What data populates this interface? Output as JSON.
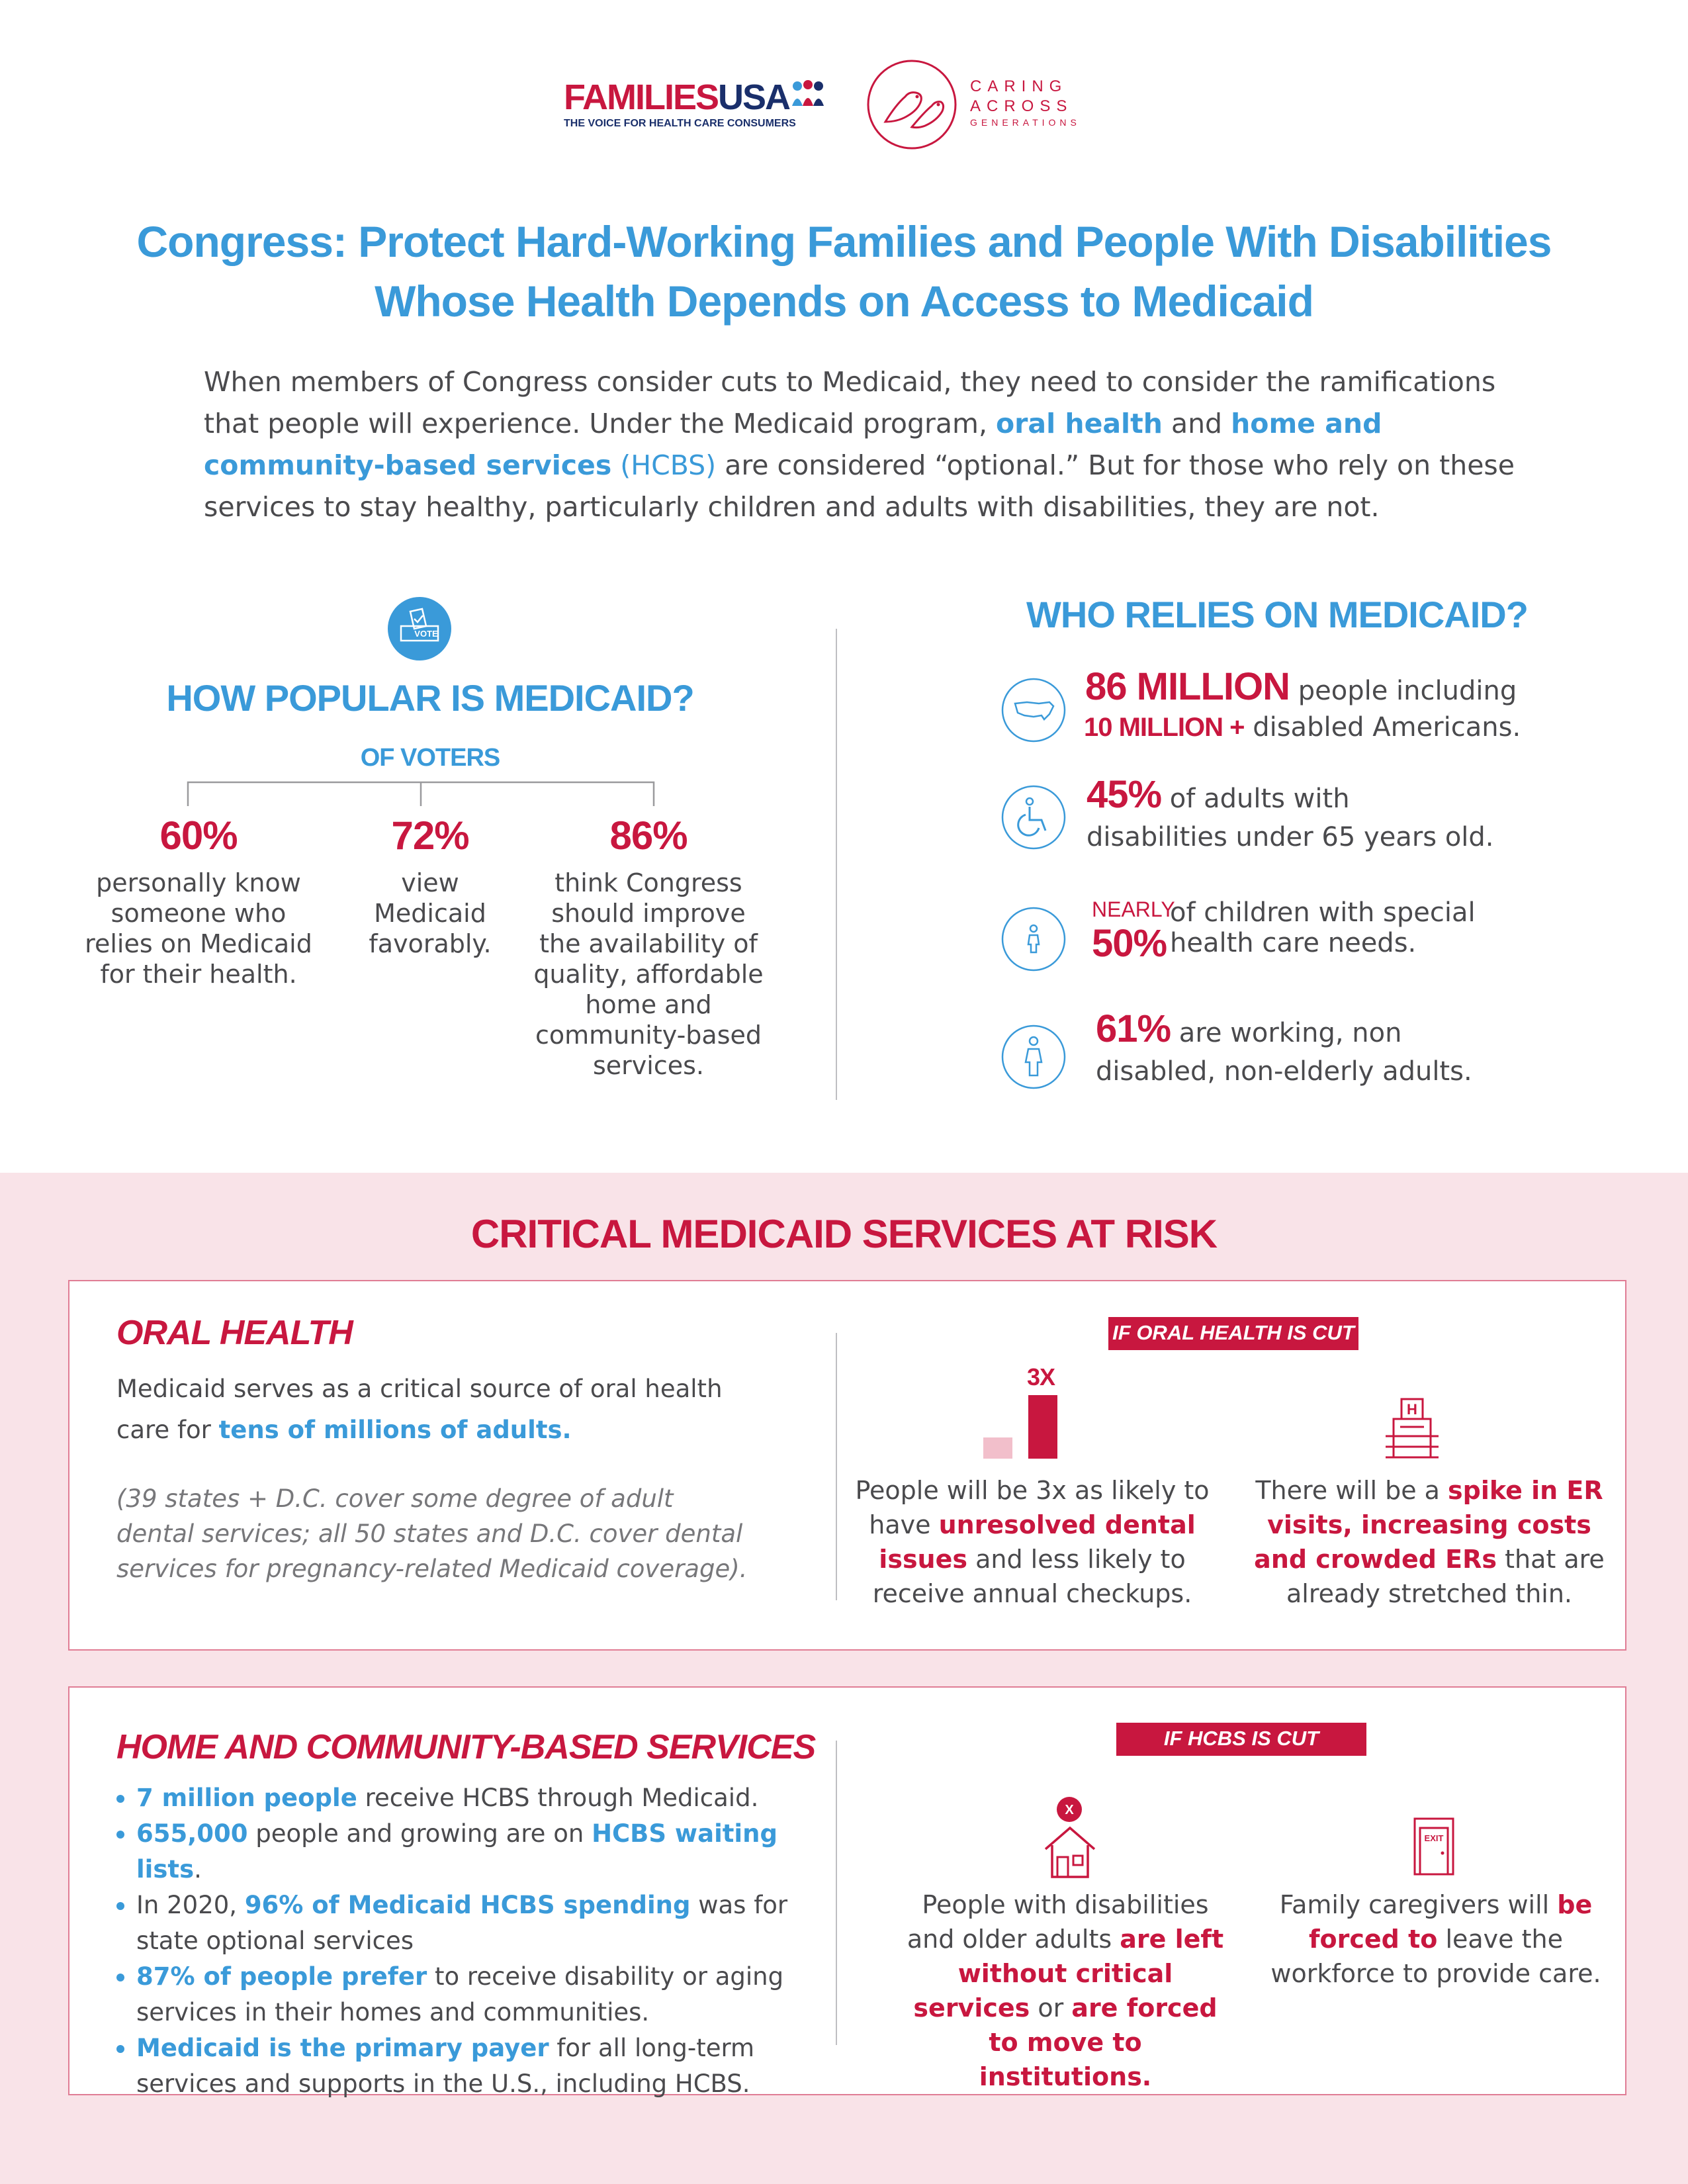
{
  "header": {
    "families_usa": {
      "name_red": "FAMILIES",
      "name_blue": "USA",
      "tagline": "THE VOICE FOR HEALTH CARE CONSUMERS"
    },
    "caring_across": {
      "line1": "CARING",
      "line2": "ACROSS",
      "line3": "GENERATIONS"
    }
  },
  "title": {
    "line1": "Congress: Protect Hard-Working Families and People With Disabilities",
    "line2": "Whose Health Depends on Access to Medicaid"
  },
  "intro": {
    "part1": "When members of Congress consider cuts to Medicaid, they need to consider the ramifications that people will experience. Under the Medicaid program, ",
    "hl1": "oral health",
    "part2": " and ",
    "hl2": "home and community-based services",
    "hl3": " (HCBS)",
    "part3": " are considered “optional.” But for those who rely on these services to stay healthy, particularly children and adults with disabilities, they are not."
  },
  "popular": {
    "icon_text": "VOTE",
    "heading": "HOW POPULAR IS MEDICAID?",
    "voters_label": "OF VOTERS",
    "stats": [
      {
        "value": "60%",
        "desc": "personally know someone who relies on Medicaid for their health."
      },
      {
        "value": "72%",
        "desc": "view Medicaid favorably."
      },
      {
        "value": "86%",
        "desc": "think Congress should improve the availability of quality, affordable home and community-based services."
      }
    ]
  },
  "who": {
    "heading": "WHO RELIES ON MEDICAID?",
    "row1": {
      "big": "86 MILLION",
      "text1": " people including",
      "med": "10 MILLION +",
      "text2": " disabled Americans."
    },
    "row2": {
      "big": "45%",
      "text": " of adults with disabilities under 65 years old."
    },
    "row3": {
      "nearly": "NEARLY",
      "big": "50%",
      "text": "of children with special health care needs."
    },
    "row4": {
      "big": "61%",
      "text": " are working, non disabled, non-elderly adults."
    }
  },
  "risk": {
    "heading": "CRITICAL MEDICAID SERVICES AT RISK",
    "oral": {
      "title": "ORAL HEALTH",
      "text1": "Medicaid serves as a critical source of oral health care for ",
      "text_bold": "tens of millions of adults.",
      "note": "(39 states + D.C. cover some degree of adult dental services; all 50 states and D.C. cover dental services for pregnancy-related Medicaid coverage).",
      "tag": "IF ORAL HEALTH IS CUT",
      "bar_label": "3X",
      "bar_values": [
        1,
        3
      ],
      "col1": {
        "t1": "People will be 3x as likely to have ",
        "b": "unresolved dental issues",
        "t2": " and less likely to receive annual checkups."
      },
      "col2": {
        "t1": "There will be a ",
        "b": "spike in ER visits, increasing costs and crowded ERs",
        "t2": " that are already stretched thin."
      },
      "hosp_letter": "H"
    },
    "hcbs": {
      "title": "HOME AND COMMUNITY-BASED SERVICES",
      "items": [
        {
          "b": "7 million people",
          "t": " receive HCBS through Medicaid.",
          "b2": "",
          "t2": ""
        },
        {
          "b": "655,000",
          "t": " people and growing are on ",
          "b2": "HCBS waiting lists",
          "t2": "."
        },
        {
          "b": "",
          "t": "In 2020, ",
          "b2": "96% of Medicaid HCBS spending",
          "t2": " was for state optional services"
        },
        {
          "b": "87% of people prefer",
          "t": " to receive disability or aging services in their homes and communities.",
          "b2": "",
          "t2": ""
        },
        {
          "b": "Medicaid is the primary payer",
          "t": " for all long-term services and supports in the U.S., including HCBS.",
          "b2": "",
          "t2": ""
        }
      ],
      "tag": "IF HCBS IS CUT",
      "x_mark": "X",
      "exit_text": "EXIT",
      "col1": {
        "t1": "People with disabilities and older adults ",
        "b1": "are left without critical services",
        "t2": " or ",
        "b2": "are forced to move to institutions."
      },
      "col2": {
        "t1": "Family caregivers will ",
        "b1": "be forced to",
        "t2": " leave the workforce to provide care."
      }
    }
  },
  "colors": {
    "blue": "#3a9ad9",
    "red": "#c8173f",
    "pink_bg": "#f9e3e8",
    "navy": "#1a2f6b"
  }
}
